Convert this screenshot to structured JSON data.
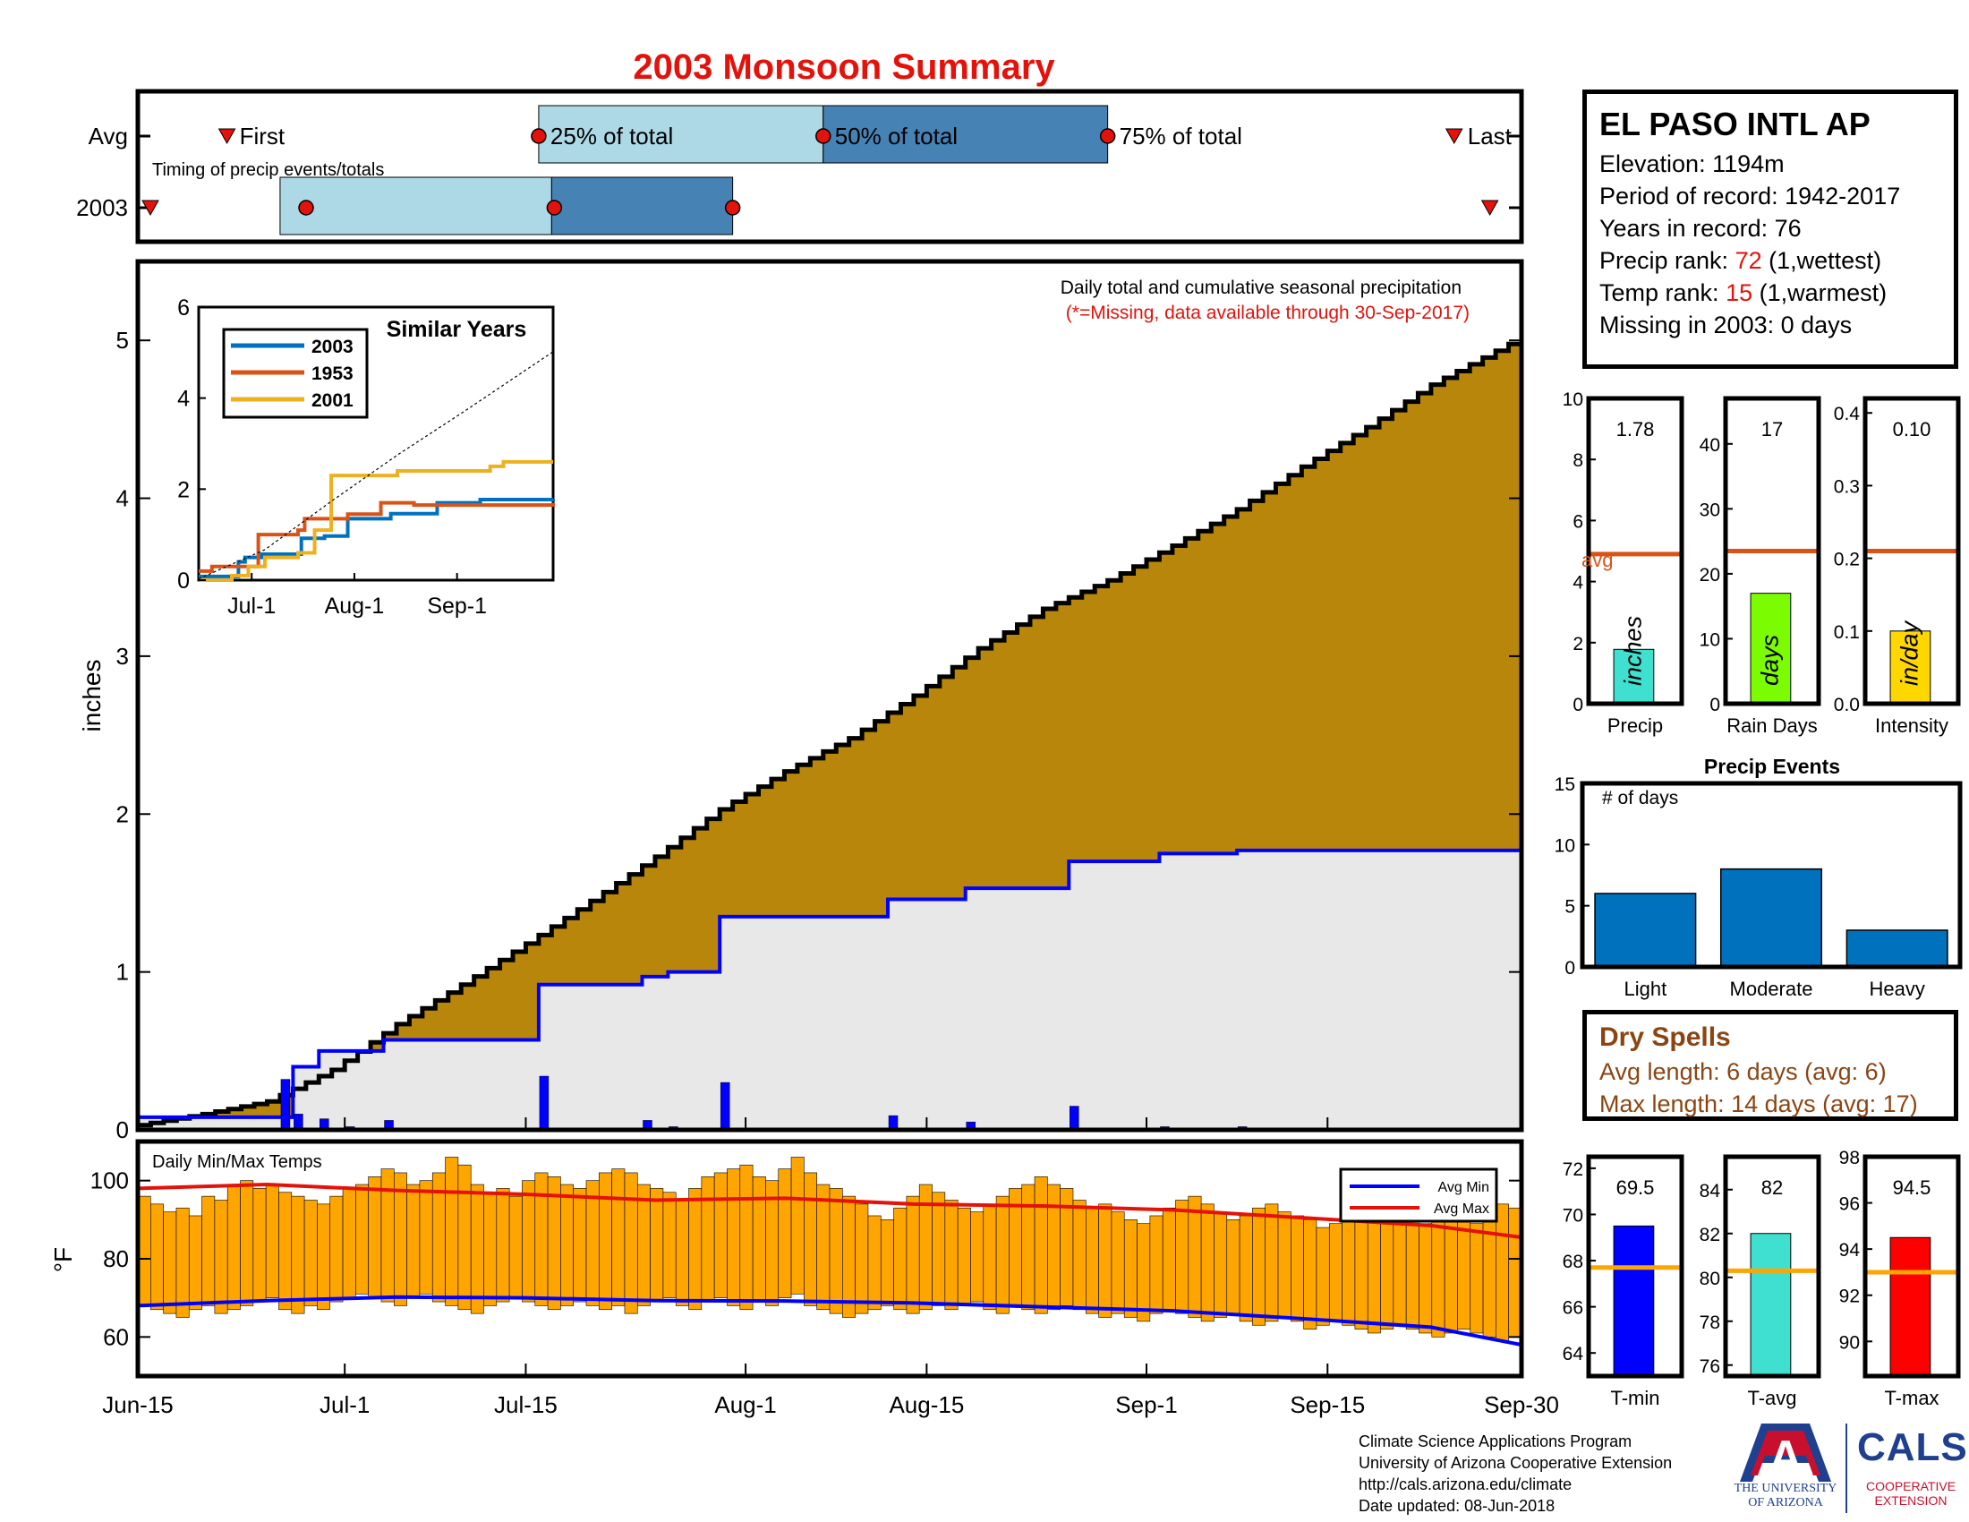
{
  "title": "2003 Monsoon Summary",
  "timing": {
    "avg_label": "Avg",
    "year_label": "2003",
    "caption": "Timing of precip events/totals",
    "first_label": "First",
    "last_label": "Last",
    "p25_label": "25% of total",
    "p50_label": "50% of total",
    "p75_label": "75% of total"
  },
  "station": {
    "name": "EL PASO INTL AP",
    "elevation_label": "Elevation: ",
    "elevation": "1194m",
    "period_label": "Period of record: ",
    "period": "1942-2017",
    "years_label": "Years in record: ",
    "years": "76",
    "precip_rank_label": "Precip rank: ",
    "precip_rank": "72",
    "precip_rank_note": " (1,wettest)",
    "temp_rank_label": "Temp rank: ",
    "temp_rank": "15",
    "temp_rank_note": " (1,warmest)",
    "missing_label": "Missing in 2003: ",
    "missing": "0 days"
  },
  "main_chart": {
    "note1": "Daily total and cumulative seasonal precipitation",
    "note2": "(*=Missing, data available through 30-Sep-2017)",
    "ylabel": "inches"
  },
  "similar_years": {
    "title": "Similar Years"
  },
  "temp_chart": {
    "caption": "Daily Min/Max Temps",
    "ylabel": "°F",
    "legend_min": "Avg Min",
    "legend_max": "Avg Max"
  },
  "stats": {
    "precip": {
      "label": "Precip",
      "unit": "inches",
      "value_label": "1.78"
    },
    "rain_days": {
      "label": "Rain Days",
      "unit": "days",
      "value_label": "17"
    },
    "intensity": {
      "label": "Intensity",
      "unit": "in/day",
      "value_label": "0.10"
    },
    "avg_label": "avg"
  },
  "events": {
    "title": "Precip Events",
    "caption": "# of days"
  },
  "dry_spells": {
    "title": "Dry Spells",
    "avg_line": "Avg length: 6 days (avg: 6)",
    "max_line": "Max length: 14 days (avg: 17)"
  },
  "temp_stats": {
    "tmin": {
      "label": "T-min",
      "value_label": "69.5"
    },
    "tavg": {
      "label": "T-avg",
      "value_label": "82"
    },
    "tmax": {
      "label": "T-max",
      "value_label": "94.5"
    }
  },
  "credits": {
    "line1": "Climate Science Applications Program",
    "line2": "University of Arizona Cooperative Extension",
    "line3": "http://cals.arizona.edu/climate",
    "line4": " Date updated: 08-Jun-2018"
  },
  "logos": {
    "ua_letter": "A",
    "ua_name": "THE UNIVERSITY OF ARIZONA",
    "cals": "CALS",
    "cals_sub": "COOPERATIVE EXTENSION"
  },
  "colors": {
    "title": "#e3120b",
    "cum_avg_fill": "#b8860b",
    "cum_obs_fill": "#e8e8e8",
    "obs_line": "#0000ff",
    "daily_bar": "#0000ff",
    "temp_bar": "#ffa500",
    "avg_min": "#0000ff",
    "avg_max": "#e3120b",
    "light_blue": "#add8e6",
    "mid_blue": "#4682b4",
    "marker_red": "#e3120b",
    "s2003": "#0072bd",
    "s1953": "#d95319",
    "s2001": "#edb120",
    "precip_bar": "#40e0d0",
    "rain_bar": "#7cfc00",
    "int_bar": "#ffd700",
    "avg_line": "#d95319",
    "events_bar": "#0072bd",
    "tmin_bar": "#0000ff",
    "tavg_bar": "#40e0d0",
    "tmax_bar": "#ff0000",
    "temp_avg_line": "#ffa500"
  },
  "chart_data": [
    {
      "id": "timing",
      "type": "timeline",
      "x_range": [
        "Jun-15",
        "Sep-30"
      ],
      "avg": {
        "first": "Jun-23",
        "p25": "Jul-16",
        "p50": "Aug-7",
        "p75": "Aug-29",
        "last": "Sep-25"
      },
      "year_2003": {
        "first": "Jun-15",
        "p25": "Jun-26",
        "p50": "Jul-17",
        "p75": "Jul-31",
        "last": "Sep-27"
      }
    },
    {
      "id": "precip_main",
      "type": "area",
      "x_ticks": [
        "Jun-15",
        "Jul-1",
        "Jul-15",
        "Aug-1",
        "Aug-15",
        "Sep-1",
        "Sep-15",
        "Sep-30"
      ],
      "x_tick_days": [
        0,
        16,
        30,
        47,
        61,
        78,
        92,
        107
      ],
      "ylim": [
        0,
        5.5
      ],
      "y_ticks": [
        0,
        1,
        2,
        3,
        4,
        5
      ],
      "avg_cumulative": {
        "days": [
          0,
          5,
          10,
          15,
          20,
          25,
          30,
          35,
          40,
          45,
          50,
          55,
          60,
          65,
          70,
          75,
          80,
          85,
          90,
          95,
          100,
          107
        ],
        "values": [
          0.03,
          0.1,
          0.18,
          0.38,
          0.67,
          0.92,
          1.18,
          1.45,
          1.73,
          2.03,
          2.27,
          2.48,
          2.75,
          3.05,
          3.3,
          3.48,
          3.7,
          3.93,
          4.2,
          4.45,
          4.72,
          5.02
        ]
      },
      "obs_cumulative": {
        "days": [
          0,
          1,
          11,
          12,
          14,
          16,
          19,
          30,
          31,
          38,
          39,
          41,
          44,
          45,
          57,
          58,
          63,
          64,
          71,
          72,
          78,
          79,
          84,
          85,
          107
        ],
        "values": [
          0.08,
          0.08,
          0.08,
          0.4,
          0.5,
          0.5,
          0.57,
          0.57,
          0.92,
          0.92,
          0.97,
          1.0,
          1.0,
          1.35,
          1.35,
          1.46,
          1.46,
          1.53,
          1.53,
          1.7,
          1.7,
          1.75,
          1.75,
          1.77,
          1.78
        ]
      },
      "daily_precip": {
        "days": [
          11,
          12,
          14,
          16,
          19,
          31,
          39,
          41,
          45,
          58,
          64,
          72,
          79,
          85
        ],
        "values": [
          0.32,
          0.1,
          0.07,
          0.02,
          0.06,
          0.34,
          0.06,
          0.02,
          0.3,
          0.09,
          0.05,
          0.15,
          0.02,
          0.02
        ]
      }
    },
    {
      "id": "similar_years",
      "type": "line",
      "x_ticks": [
        "Jul-1",
        "Aug-1",
        "Sep-1"
      ],
      "x_tick_days": [
        16,
        47,
        78
      ],
      "ylim": [
        0,
        6
      ],
      "y_ticks": [
        0,
        2,
        4,
        6
      ],
      "series": [
        {
          "name": "2003",
          "days": [
            0,
            11,
            12,
            14,
            19,
            31,
            38,
            45,
            58,
            72,
            85,
            107
          ],
          "values": [
            0.08,
            0.08,
            0.4,
            0.5,
            0.57,
            0.92,
            0.97,
            1.35,
            1.46,
            1.7,
            1.77,
            1.78
          ]
        },
        {
          "name": "1953",
          "days": [
            0,
            4,
            17,
            18,
            30,
            32,
            45,
            55,
            65,
            107
          ],
          "values": [
            0.2,
            0.3,
            0.3,
            1.0,
            1.1,
            1.35,
            1.45,
            1.7,
            1.65,
            1.7
          ]
        },
        {
          "name": "2001",
          "days": [
            0,
            10,
            15,
            20,
            30,
            35,
            40,
            55,
            60,
            88,
            92,
            107
          ],
          "values": [
            0.0,
            0.1,
            0.3,
            0.5,
            0.6,
            1.1,
            2.3,
            2.3,
            2.4,
            2.5,
            2.6,
            2.6
          ]
        },
        {
          "days": [
            0,
            20,
            40,
            60,
            80,
            107
          ],
          "values": [
            0.03,
            0.67,
            1.73,
            2.75,
            3.7,
            5.02
          ]
        }
      ]
    },
    {
      "id": "daily_temps",
      "type": "bar",
      "ylim": [
        50,
        110
      ],
      "y_ticks": [
        60,
        80,
        100
      ],
      "tmax": [
        96,
        94,
        92,
        93,
        91,
        96,
        95,
        99,
        100,
        98,
        99,
        97,
        96,
        95,
        94,
        96,
        98,
        99,
        101,
        103,
        102,
        99,
        100,
        102,
        106,
        104,
        99,
        97,
        98,
        96,
        100,
        102,
        101,
        99,
        98,
        100,
        102,
        103,
        102,
        99,
        98,
        97,
        95,
        98,
        101,
        102,
        103,
        104,
        101,
        100,
        103,
        106,
        102,
        99,
        98,
        96,
        94,
        91,
        90,
        93,
        96,
        99,
        97,
        95,
        93,
        92,
        94,
        96,
        98,
        99,
        101,
        99,
        98,
        95,
        93,
        94,
        92,
        90,
        89,
        91,
        93,
        95,
        96,
        94,
        92,
        90,
        91,
        93,
        94,
        92,
        91,
        90,
        88,
        89,
        91,
        93,
        95,
        94,
        92,
        90,
        89,
        91,
        92,
        90,
        89,
        92,
        94,
        93
      ],
      "tmin": [
        68,
        67,
        66,
        65,
        67,
        68,
        66,
        67,
        68,
        69,
        70,
        67,
        66,
        68,
        67,
        69,
        70,
        71,
        70,
        69,
        68,
        70,
        71,
        69,
        68,
        67,
        66,
        68,
        69,
        70,
        69,
        68,
        67,
        68,
        69,
        68,
        67,
        68,
        66,
        68,
        69,
        70,
        68,
        67,
        69,
        70,
        68,
        67,
        69,
        68,
        70,
        71,
        68,
        67,
        66,
        65,
        66,
        67,
        68,
        67,
        66,
        67,
        68,
        67,
        68,
        69,
        67,
        66,
        68,
        67,
        66,
        67,
        68,
        67,
        66,
        65,
        66,
        65,
        64,
        66,
        67,
        66,
        65,
        64,
        65,
        66,
        64,
        63,
        64,
        65,
        64,
        62,
        63,
        64,
        63,
        62,
        61,
        62,
        63,
        62,
        61,
        60,
        61,
        62,
        61,
        60,
        59,
        60
      ],
      "avg_min": {
        "days": [
          0,
          10,
          20,
          30,
          40,
          50,
          60,
          70,
          80,
          90,
          100,
          107
        ],
        "values": [
          68.0,
          69.3,
          70.2,
          70.0,
          69.3,
          69.2,
          68.7,
          67.7,
          66.7,
          64.7,
          62.5,
          58.0
        ]
      },
      "avg_max": {
        "days": [
          0,
          10,
          20,
          30,
          40,
          50,
          60,
          70,
          80,
          90,
          100,
          107
        ],
        "values": [
          98.0,
          99.0,
          97.5,
          96.5,
          95.0,
          95.5,
          94.0,
          93.5,
          92.5,
          90.5,
          88.5,
          85.5
        ]
      }
    },
    {
      "id": "stat_precip",
      "type": "bar",
      "categories": [
        "Precip"
      ],
      "values": [
        1.78
      ],
      "avg": 4.9,
      "ylim": [
        0,
        10
      ],
      "y_ticks": [
        0,
        2,
        4,
        6,
        8,
        10
      ]
    },
    {
      "id": "stat_rain_days",
      "type": "bar",
      "categories": [
        "Rain Days"
      ],
      "values": [
        17
      ],
      "avg": 23.5,
      "ylim": [
        0,
        47
      ],
      "y_ticks": [
        0,
        10,
        20,
        30,
        40
      ]
    },
    {
      "id": "stat_intensity",
      "type": "bar",
      "categories": [
        "Intensity"
      ],
      "values": [
        0.1
      ],
      "avg": 0.21,
      "ylim": [
        0,
        0.42
      ],
      "y_ticks": [
        0,
        0.1,
        0.2,
        0.3,
        0.4
      ]
    },
    {
      "id": "precip_events",
      "type": "bar",
      "categories": [
        "Light",
        "Moderate",
        "Heavy"
      ],
      "values": [
        6,
        8,
        3
      ],
      "ylim": [
        0,
        15
      ],
      "y_ticks": [
        0,
        5,
        10,
        15
      ]
    },
    {
      "id": "stat_tmin",
      "type": "bar",
      "categories": [
        "T-min"
      ],
      "values": [
        69.5
      ],
      "avg": 67.7,
      "ylim": [
        63,
        72.5
      ],
      "y_ticks": [
        64,
        66,
        68,
        70,
        72
      ]
    },
    {
      "id": "stat_tavg",
      "type": "bar",
      "categories": [
        "T-avg"
      ],
      "values": [
        82
      ],
      "avg": 80.3,
      "ylim": [
        75.5,
        85.5
      ],
      "y_ticks": [
        76,
        78,
        80,
        82,
        84
      ]
    },
    {
      "id": "stat_tmax",
      "type": "bar",
      "categories": [
        "T-max"
      ],
      "values": [
        94.5
      ],
      "avg": 93.0,
      "ylim": [
        88.5,
        98
      ],
      "y_ticks": [
        90,
        92,
        94,
        96,
        98
      ]
    }
  ]
}
